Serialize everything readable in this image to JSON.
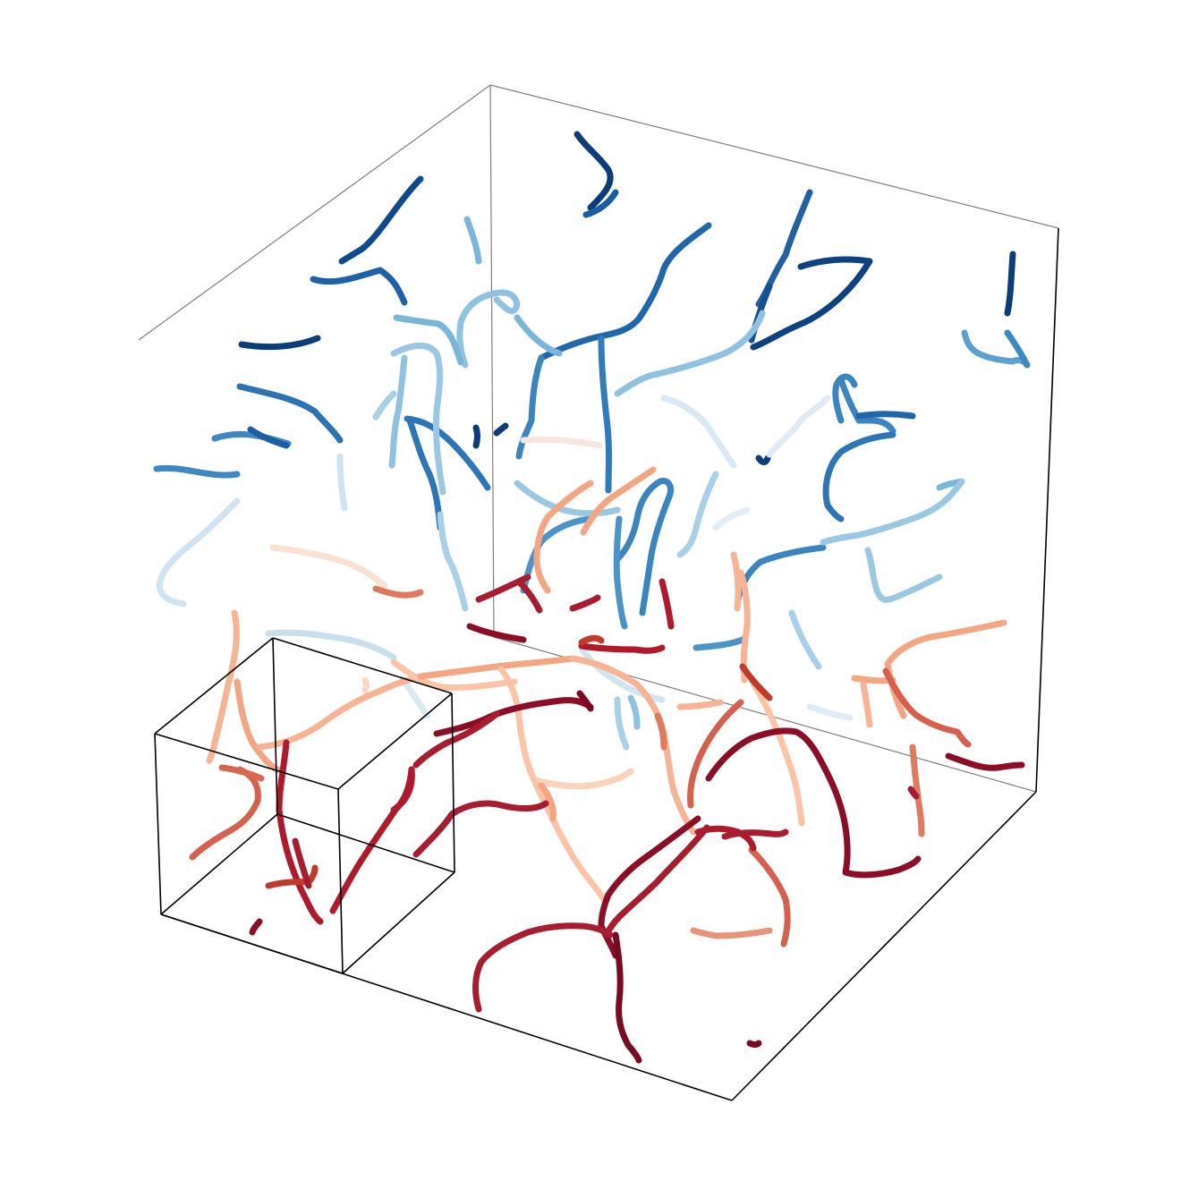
{
  "chart_data": {
    "type": "line",
    "title": "",
    "xlabel": "",
    "ylabel": "",
    "zlabel": "",
    "grid": false,
    "legend": "none",
    "colormap": "RdBu",
    "colors": {
      "blue_dark": "#08306b",
      "blue_mid": "#2166ac",
      "blue_light": "#6baed6",
      "blue_pale": "#c6dbef",
      "red_pale": "#fcd0b6",
      "red_light": "#f4a582",
      "red_mid": "#d6604d",
      "red_dark": "#b2182b",
      "red_deep": "#67001f"
    }
  }
}
